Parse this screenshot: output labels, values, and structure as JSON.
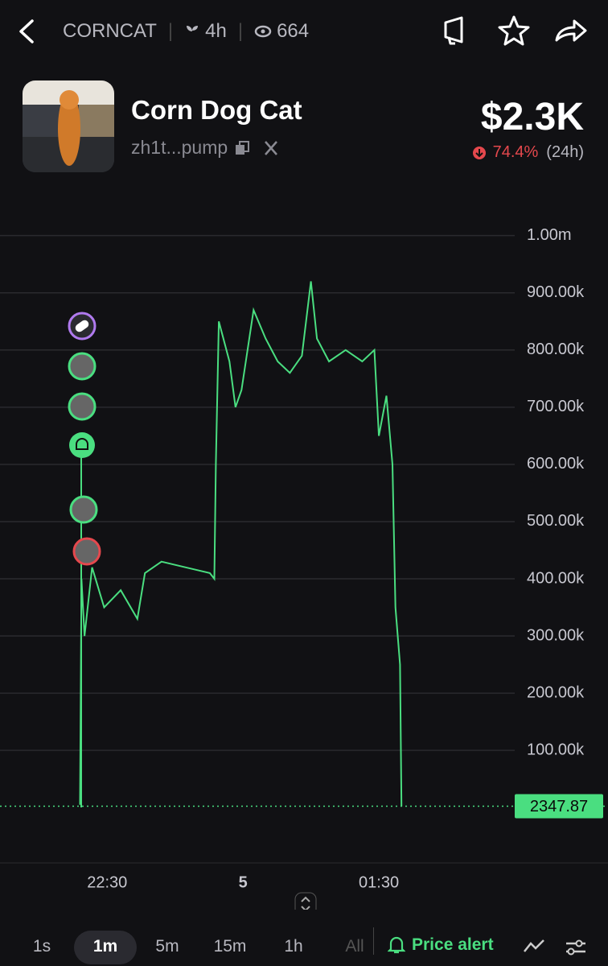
{
  "header": {
    "symbol": "CORNCAT",
    "age": "4h",
    "viewers": "664"
  },
  "token": {
    "name": "Corn Dog Cat",
    "address": "zh1t...pump",
    "price": "$2.3K",
    "change": "74.4%",
    "period": "(24h)"
  },
  "chart_data": {
    "type": "line",
    "x": [
      1332,
      1333,
      1335,
      1340,
      1348,
      1359,
      1370,
      1375,
      1386,
      1402,
      1418,
      1421,
      1422,
      1424,
      1431,
      1435,
      1439,
      1447,
      1455,
      1463,
      1471,
      1479,
      1485,
      1489,
      1497,
      1508,
      1519,
      1527,
      1530,
      1535,
      1539,
      1541,
      1544,
      1545
    ],
    "values": [
      5000,
      400000,
      300000,
      420000,
      350000,
      380000,
      330000,
      410000,
      430000,
      420000,
      410000,
      400000,
      600000,
      850000,
      780000,
      700000,
      730000,
      870000,
      820000,
      780000,
      760000,
      790000,
      920000,
      820000,
      780000,
      800000,
      780000,
      800000,
      650000,
      720000,
      600000,
      350000,
      250000,
      2347.87
    ],
    "color": "#4ade80",
    "xlim": [
      1279,
      1620
    ],
    "ylim": [
      -94000,
      1046000
    ],
    "xticks": [
      {
        "value": 1350,
        "label": "22:30"
      },
      {
        "value": 1440,
        "label": "5"
      },
      {
        "value": 1530,
        "label": "01:30"
      }
    ],
    "yticks": [
      {
        "value": 100000,
        "label": "100.00k"
      },
      {
        "value": 200000,
        "label": "200.00k"
      },
      {
        "value": 300000,
        "label": "300.00k"
      },
      {
        "value": 400000,
        "label": "400.00k"
      },
      {
        "value": 500000,
        "label": "500.00k"
      },
      {
        "value": 600000,
        "label": "600.00k"
      },
      {
        "value": 700000,
        "label": "700.00k"
      },
      {
        "value": 800000,
        "label": "800.00k"
      },
      {
        "value": 900000,
        "label": "900.00k"
      },
      {
        "value": 1000000,
        "label": "1.00m"
      }
    ],
    "grid": true,
    "last_price": 2347.87
  },
  "toolbar": {
    "intervals": [
      "1s",
      "1m",
      "5m",
      "15m",
      "1h",
      "All"
    ],
    "price_alert": "Price alert"
  }
}
